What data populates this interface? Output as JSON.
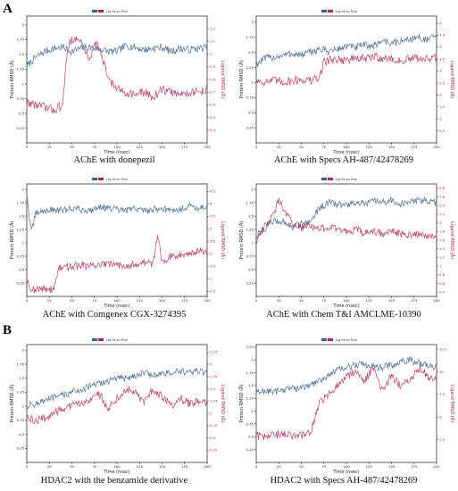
{
  "figure": {
    "section_labels": [
      "A",
      "B"
    ],
    "colors": {
      "protein": "#3d5f87",
      "ligand": "#a8244b",
      "protein_label": "#222222",
      "ligand_label": "#a8244b"
    }
  },
  "chart_data": [
    {
      "type": "line",
      "caption": "AChE with donepezil",
      "legend": "Lig fit on Prot",
      "xlabel": "Time (nsec)",
      "ylabel": "Protein RMSD (Å)",
      "y2label": "Ligand RMSD (Å)",
      "xlim": [
        0,
        200
      ],
      "xticks": [
        0,
        25,
        50,
        75,
        100,
        125,
        150,
        175,
        200
      ],
      "ylim": [
        0.0,
        2.15
      ],
      "yticks": [
        0.25,
        0.5,
        0.75,
        1.0,
        1.25,
        1.5,
        1.75,
        2.0
      ],
      "y2lim": [
        0.3,
        1.3
      ],
      "y2ticks": [
        0.4,
        0.5,
        0.6,
        0.7,
        0.8,
        0.9,
        1.0,
        1.1,
        1.2
      ],
      "series": [
        {
          "role": "protein",
          "x": [
            0,
            10,
            20,
            30,
            40,
            50,
            60,
            70,
            80,
            90,
            100,
            110,
            120,
            130,
            140,
            150,
            160,
            170,
            180,
            190,
            200
          ],
          "y": [
            1.3,
            1.45,
            1.55,
            1.6,
            1.62,
            1.55,
            1.6,
            1.62,
            1.6,
            1.55,
            1.55,
            1.65,
            1.62,
            1.58,
            1.6,
            1.62,
            1.55,
            1.6,
            1.58,
            1.6,
            1.62
          ]
        },
        {
          "role": "ligand",
          "x": [
            0,
            10,
            20,
            30,
            40,
            45,
            50,
            60,
            70,
            75,
            80,
            90,
            100,
            110,
            120,
            130,
            140,
            150,
            160,
            170,
            180,
            190,
            200
          ],
          "y": [
            0.62,
            0.6,
            0.58,
            0.56,
            0.6,
            1.05,
            1.12,
            1.1,
            0.95,
            1.1,
            1.05,
            0.82,
            0.72,
            0.7,
            0.68,
            0.7,
            0.66,
            0.72,
            0.7,
            0.68,
            0.7,
            0.7,
            0.72
          ]
        }
      ]
    },
    {
      "type": "line",
      "caption": "AChE with Specs AH-487/42478269",
      "legend": "Lig fit on Prot",
      "xlabel": "Time (nsec)",
      "ylabel": "Protein RMSD (Å)",
      "y2label": "Ligand RMSD (Å)",
      "xlim": [
        0,
        200
      ],
      "xticks": [
        0,
        25,
        50,
        75,
        100,
        125,
        150,
        175,
        200
      ],
      "ylim": [
        0.0,
        2.1
      ],
      "yticks": [
        0.25,
        0.5,
        0.75,
        1.0,
        1.25,
        1.5,
        1.75,
        2.0
      ],
      "y2lim": [
        0.0,
        5.3
      ],
      "y2ticks": [
        0.5,
        1.0,
        1.5,
        2.0,
        2.5,
        3.0,
        3.5,
        4.0,
        4.5,
        5.0
      ],
      "series": [
        {
          "role": "protein",
          "x": [
            0,
            10,
            20,
            30,
            40,
            50,
            60,
            70,
            80,
            90,
            100,
            110,
            120,
            130,
            140,
            150,
            160,
            170,
            180,
            190,
            200
          ],
          "y": [
            1.3,
            1.4,
            1.42,
            1.45,
            1.48,
            1.45,
            1.5,
            1.55,
            1.52,
            1.55,
            1.6,
            1.58,
            1.62,
            1.6,
            1.7,
            1.65,
            1.68,
            1.72,
            1.75,
            1.7,
            1.78
          ]
        },
        {
          "role": "ligand",
          "x": [
            0,
            10,
            20,
            30,
            40,
            50,
            60,
            70,
            75,
            80,
            90,
            100,
            110,
            120,
            130,
            140,
            150,
            160,
            170,
            180,
            190,
            200
          ],
          "y": [
            2.6,
            2.55,
            2.6,
            2.55,
            2.6,
            2.65,
            2.6,
            2.7,
            3.4,
            3.45,
            3.5,
            3.45,
            3.55,
            3.5,
            3.6,
            3.55,
            3.5,
            3.4,
            3.5,
            3.55,
            3.5,
            3.55
          ]
        }
      ]
    },
    {
      "type": "line",
      "caption": "AChE with Comgenex CGX-3274395",
      "legend": "Lig fit on Prot",
      "xlabel": "Time (nsec)",
      "ylabel": "Protein RMSD (Å)",
      "y2label": "Ligand RMSD (Å)",
      "xlim": [
        0,
        200
      ],
      "xticks": [
        0,
        25,
        50,
        75,
        100,
        125,
        150,
        175,
        200
      ],
      "ylim": [
        0.0,
        2.1
      ],
      "yticks": [
        0.25,
        0.5,
        0.75,
        1.0,
        1.25,
        1.5,
        1.75,
        2.0
      ],
      "y2lim": [
        0.3,
        4.8
      ],
      "y2ticks": [
        0.5,
        1.0,
        1.5,
        2.0,
        2.5,
        3.0,
        3.5,
        4.0,
        4.5
      ],
      "series": [
        {
          "role": "protein",
          "x": [
            0,
            5,
            10,
            20,
            30,
            40,
            50,
            60,
            70,
            80,
            90,
            100,
            110,
            120,
            130,
            140,
            150,
            160,
            170,
            180,
            190,
            200
          ],
          "y": [
            1.9,
            1.2,
            1.55,
            1.6,
            1.62,
            1.6,
            1.65,
            1.62,
            1.6,
            1.68,
            1.65,
            1.62,
            1.6,
            1.65,
            1.6,
            1.62,
            1.65,
            1.6,
            1.62,
            1.7,
            1.65,
            1.68
          ]
        },
        {
          "role": "ligand",
          "x": [
            0,
            5,
            10,
            20,
            30,
            35,
            40,
            50,
            60,
            70,
            80,
            90,
            100,
            110,
            120,
            130,
            140,
            145,
            150,
            160,
            170,
            180,
            190,
            200
          ],
          "y": [
            1.0,
            0.6,
            0.55,
            0.6,
            0.6,
            1.4,
            1.45,
            1.5,
            1.55,
            1.5,
            1.6,
            1.55,
            1.6,
            1.55,
            1.6,
            1.65,
            1.6,
            2.8,
            1.7,
            1.9,
            2.0,
            2.05,
            2.1,
            2.1
          ]
        }
      ]
    },
    {
      "type": "line",
      "caption": "AChE with Chem T&I AMCLME-10390",
      "legend": "Lig fit on Prot",
      "xlabel": "Time (nsec)",
      "ylabel": "Protein RMSD (Å)",
      "y2label": "Ligand RMSD (Å)",
      "xlim": [
        0,
        200
      ],
      "xticks": [
        0,
        25,
        50,
        75,
        100,
        125,
        150,
        175,
        200
      ],
      "ylim": [
        0.0,
        2.1
      ],
      "yticks": [
        0.25,
        0.5,
        0.75,
        1.0,
        1.25,
        1.5,
        1.75,
        2.0
      ],
      "y2lim": [
        0.3,
        2.9
      ],
      "y2ticks": [
        0.4,
        0.6,
        0.8,
        1.0,
        1.2,
        1.4,
        1.6,
        1.8,
        2.0,
        2.2,
        2.4,
        2.6,
        2.8
      ],
      "series": [
        {
          "role": "protein",
          "x": [
            0,
            10,
            20,
            30,
            40,
            50,
            60,
            70,
            80,
            90,
            100,
            110,
            120,
            130,
            140,
            150,
            160,
            170,
            180,
            190,
            200
          ],
          "y": [
            1.0,
            1.35,
            1.4,
            1.4,
            1.3,
            1.35,
            1.4,
            1.65,
            1.75,
            1.72,
            1.7,
            1.75,
            1.72,
            1.78,
            1.75,
            1.8,
            1.72,
            1.75,
            1.8,
            1.78,
            1.75
          ]
        },
        {
          "role": "ligand",
          "x": [
            0,
            10,
            20,
            25,
            30,
            40,
            50,
            60,
            70,
            80,
            90,
            100,
            110,
            120,
            130,
            140,
            150,
            160,
            170,
            180,
            190,
            200
          ],
          "y": [
            1.7,
            1.9,
            2.2,
            2.55,
            2.3,
            2.0,
            1.9,
            1.95,
            1.85,
            1.9,
            1.85,
            1.8,
            1.85,
            1.75,
            1.8,
            1.75,
            1.8,
            1.75,
            1.7,
            1.75,
            1.7,
            1.72
          ]
        }
      ]
    },
    {
      "type": "line",
      "caption": "HDAC2 with the benzamide derivative",
      "legend": "Lig fit on Prot",
      "xlabel": "Time (nsec)",
      "ylabel": "Protein RMSD (Å)",
      "y2label": "Ligand RMSD (Å)",
      "xlim": [
        0,
        200
      ],
      "xticks": [
        0,
        25,
        50,
        75,
        100,
        125,
        150,
        175,
        200
      ],
      "ylim": [
        0.0,
        2.1
      ],
      "yticks": [
        0.25,
        0.5,
        0.75,
        1.0,
        1.25,
        1.5,
        1.75,
        2.0
      ],
      "y2lim": [
        0.0,
        2.4
      ],
      "y2ticks": [
        0.25,
        0.5,
        0.75,
        1.0,
        1.25,
        1.5,
        1.75,
        2.0,
        2.25
      ],
      "series": [
        {
          "role": "protein",
          "x": [
            0,
            10,
            20,
            30,
            40,
            50,
            60,
            70,
            80,
            90,
            100,
            110,
            120,
            130,
            140,
            150,
            160,
            170,
            180,
            190,
            200
          ],
          "y": [
            1.0,
            1.05,
            1.1,
            1.15,
            1.2,
            1.25,
            1.3,
            1.35,
            1.4,
            1.45,
            1.5,
            1.5,
            1.55,
            1.6,
            1.55,
            1.58,
            1.6,
            1.62,
            1.6,
            1.62,
            1.6
          ]
        },
        {
          "role": "ligand",
          "x": [
            0,
            10,
            20,
            30,
            40,
            50,
            60,
            70,
            80,
            90,
            100,
            110,
            120,
            130,
            140,
            150,
            160,
            170,
            180,
            190,
            200
          ],
          "y": [
            0.9,
            0.85,
            0.9,
            1.0,
            1.1,
            1.15,
            1.2,
            1.3,
            1.4,
            1.1,
            1.3,
            1.5,
            1.45,
            1.2,
            1.5,
            1.35,
            1.15,
            1.3,
            1.2,
            1.25,
            1.2
          ]
        }
      ]
    },
    {
      "type": "line",
      "caption": "HDAC2 with Specs AH-487/42478269",
      "legend": "Lig fit on Prot",
      "xlabel": "Time (nsec)",
      "ylabel": "Protein RMSD (Å)",
      "y2label": "Ligand RMSD (Å)",
      "xlim": [
        0,
        200
      ],
      "xticks": [
        0,
        25,
        50,
        75,
        100,
        125,
        150,
        175,
        200
      ],
      "ylim": [
        0.0,
        2.3
      ],
      "yticks": [
        0.25,
        0.5,
        0.75,
        1.0,
        1.25,
        1.5,
        1.75,
        2.0,
        2.25
      ],
      "y2lim": [
        0.0,
        13.0
      ],
      "y2ticks": [
        2.5,
        5.0,
        7.5,
        10.0,
        12.5
      ],
      "series": [
        {
          "role": "protein",
          "x": [
            0,
            10,
            20,
            30,
            40,
            50,
            60,
            70,
            80,
            90,
            100,
            110,
            120,
            130,
            140,
            150,
            160,
            170,
            180,
            190,
            200
          ],
          "y": [
            1.35,
            1.4,
            1.38,
            1.42,
            1.45,
            1.45,
            1.5,
            1.6,
            1.7,
            1.8,
            1.85,
            1.9,
            1.92,
            1.88,
            1.85,
            1.9,
            1.95,
            2.0,
            1.95,
            1.9,
            1.85
          ]
        },
        {
          "role": "ligand",
          "x": [
            0,
            10,
            20,
            30,
            40,
            50,
            60,
            70,
            80,
            90,
            100,
            110,
            120,
            130,
            140,
            150,
            160,
            170,
            180,
            190,
            200
          ],
          "y": [
            3.0,
            2.8,
            3.0,
            3.2,
            2.9,
            3.0,
            3.2,
            6.5,
            7.5,
            8.5,
            9.5,
            10.0,
            9.0,
            10.5,
            8.0,
            9.5,
            8.5,
            9.0,
            10.5,
            9.5,
            9.0
          ]
        }
      ]
    }
  ]
}
